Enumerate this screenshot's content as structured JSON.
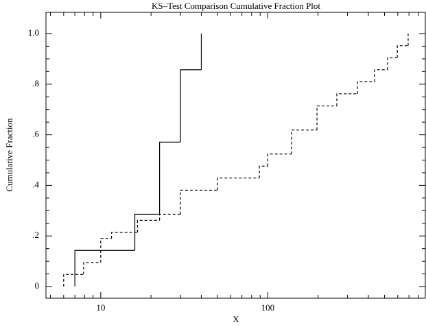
{
  "chart_data": {
    "type": "step",
    "title": "KS–Test Comparison Cumulative Fraction Plot",
    "xlabel": "X",
    "ylabel": "Cumulative Fraction",
    "xscale": "log",
    "xlim": [
      4.7,
      877
    ],
    "ylim": [
      -0.046,
      1.084
    ],
    "xticks": [
      10,
      100
    ],
    "xminor": [
      5,
      6,
      7,
      8,
      9,
      20,
      30,
      40,
      50,
      60,
      70,
      80,
      90,
      200,
      300,
      400,
      500,
      600,
      700,
      800
    ],
    "yticks": [
      0,
      {
        "value": 0.2,
        "label": ".2"
      },
      {
        "value": 0.4,
        "label": ".4"
      },
      {
        "value": 0.6,
        "label": ".6"
      },
      {
        "value": 0.8,
        "label": ".8"
      },
      {
        "value": 1.0,
        "label": "1.0"
      }
    ],
    "yminor": [
      0.05,
      0.1,
      0.15,
      0.25,
      0.3,
      0.35,
      0.45,
      0.5,
      0.55,
      0.65,
      0.7,
      0.75,
      0.85,
      0.9,
      0.95
    ],
    "series": [
      {
        "color": "#000000",
        "linestyle": "solid",
        "x": [
          7,
          7,
          16,
          22.5,
          30,
          40
        ],
        "values": [
          0,
          0.143,
          0.286,
          0.571,
          0.857,
          1.0
        ]
      },
      {
        "color": "#000000",
        "linestyle": "dashed",
        "x": [
          6,
          6,
          7.9,
          10,
          11.6,
          16.6,
          22.5,
          30,
          50,
          89,
          100,
          139,
          197,
          259,
          344,
          436,
          521,
          596,
          692
        ],
        "values": [
          0,
          0.048,
          0.095,
          0.19,
          0.214,
          0.262,
          0.286,
          0.381,
          0.429,
          0.476,
          0.524,
          0.619,
          0.714,
          0.762,
          0.81,
          0.857,
          0.905,
          0.952,
          1.0
        ]
      }
    ]
  }
}
